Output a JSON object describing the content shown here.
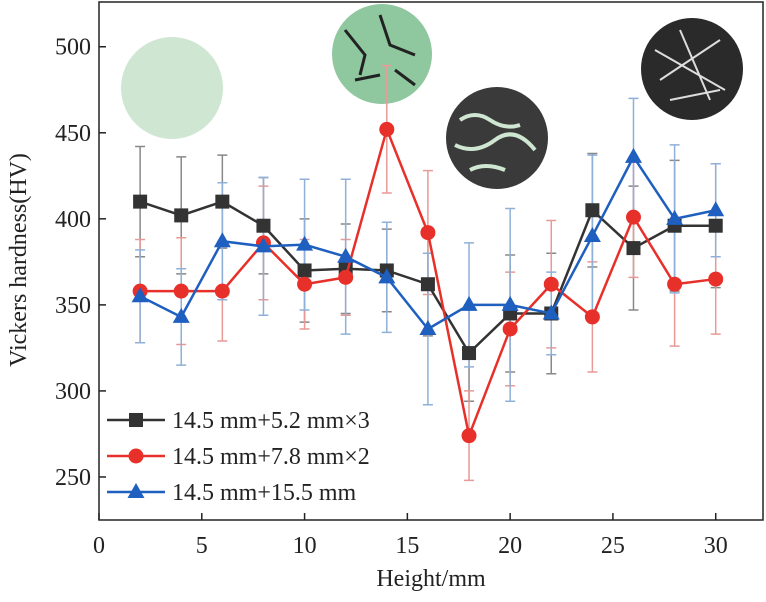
{
  "chart_data": {
    "type": "line",
    "x_label": "Height/mm",
    "y_label": "Vickers hardness(HV)",
    "x": [
      2,
      4,
      6,
      8,
      10,
      12,
      14,
      16,
      18,
      20,
      22,
      24,
      26,
      28,
      30
    ],
    "series": [
      {
        "name": "14.5 mm+5.2 mm×3",
        "color": "#333333",
        "error_color": "#888888",
        "marker": "square",
        "values": [
          410,
          402,
          410,
          396,
          370,
          371,
          370,
          362,
          322,
          345,
          345,
          405,
          383,
          396,
          396
        ],
        "errors": [
          32,
          34,
          27,
          28,
          30,
          26,
          24,
          30,
          28,
          34,
          35,
          33,
          36,
          38,
          36
        ]
      },
      {
        "name": "14.5 mm+7.8 mm×2",
        "color": "#e8302a",
        "error_color": "#e89a96",
        "marker": "circle",
        "values": [
          358,
          358,
          358,
          386,
          362,
          366,
          452,
          392,
          274,
          336,
          362,
          343,
          401,
          362,
          365
        ],
        "errors": [
          30,
          31,
          29,
          33,
          26,
          22,
          37,
          36,
          26,
          33,
          37,
          32,
          35,
          36,
          32
        ]
      },
      {
        "name": "14.5 mm+15.5 mm",
        "color": "#1f5fbf",
        "error_color": "#8fb0d8",
        "marker": "triangle",
        "values": [
          355,
          343,
          387,
          384,
          385,
          378,
          366,
          336,
          350,
          350,
          345,
          390,
          436,
          400,
          405
        ],
        "errors": [
          27,
          28,
          34,
          40,
          38,
          45,
          32,
          44,
          36,
          56,
          24,
          47,
          34,
          43,
          27
        ]
      }
    ],
    "xlim": [
      0,
      32.3
    ],
    "ylim": [
      225,
      526
    ],
    "xticks": [
      0,
      5,
      10,
      15,
      20,
      25,
      30
    ],
    "yticks": [
      250,
      300,
      350,
      400,
      450,
      500
    ],
    "legend": "lower left"
  }
}
